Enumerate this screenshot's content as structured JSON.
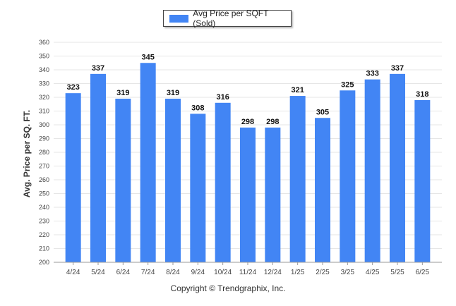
{
  "chart_data": {
    "type": "bar",
    "categories": [
      "4/24",
      "5/24",
      "6/24",
      "7/24",
      "8/24",
      "9/24",
      "10/24",
      "11/24",
      "12/24",
      "1/25",
      "2/25",
      "3/25",
      "4/25",
      "5/25",
      "6/25"
    ],
    "series": [
      {
        "name": "Avg Price per SQFT (Sold)",
        "values": [
          323,
          337,
          319,
          345,
          319,
          308,
          316,
          298,
          298,
          321,
          305,
          325,
          333,
          337,
          318
        ],
        "color": "#4285f4"
      }
    ],
    "ylabel": "Avg. Price per SQ. FT.",
    "ylim": [
      200,
      360
    ],
    "yticks": [
      200,
      210,
      220,
      230,
      240,
      250,
      260,
      270,
      280,
      290,
      300,
      310,
      320,
      330,
      340,
      350,
      360
    ],
    "legend_position": "top-center",
    "grid": true,
    "data_labels": true
  },
  "footer": "Copyright © Trendgraphix, Inc."
}
